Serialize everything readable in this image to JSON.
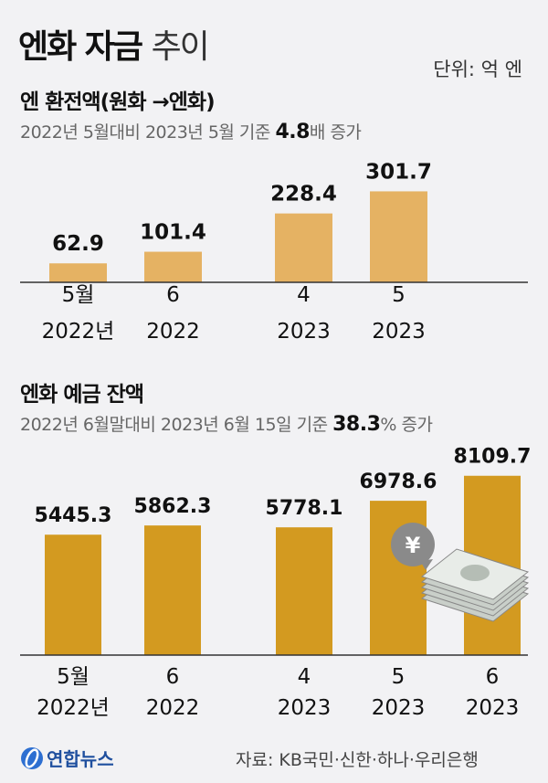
{
  "title": {
    "bold": "엔화 자금",
    "light": "추이"
  },
  "unit": "단위: 억 엔",
  "colors": {
    "bar1": "#e5b263",
    "bar2": "#d39a20",
    "background": "#f2f2f4"
  },
  "source": "자료: KB국민·신한·하나·우리은행",
  "logo": {
    "text": "연합뉴스",
    "icon": "yonhap-globe-logo"
  },
  "chart_data": [
    {
      "type": "bar",
      "title": "엔 환전액(원화 →엔화)",
      "note": {
        "pre": "2022년 5월대비 2023년 5월 기준 ",
        "highlight": "4.8",
        "post": "배 증가"
      },
      "categories": [
        [
          "5월",
          "2022년"
        ],
        [
          "6",
          "2022"
        ],
        [
          "4",
          "2023"
        ],
        [
          "5",
          "2023"
        ]
      ],
      "values": [
        62.9,
        101.4,
        228.4,
        301.7
      ],
      "value_labels": [
        "62.9",
        "101.4",
        "228.4",
        "301.7"
      ]
    },
    {
      "type": "bar",
      "title": "엔화 예금 잔액",
      "note": {
        "pre": "2022년 6월말대비 2023년 6월 15일 기준 ",
        "highlight": "38.3",
        "post": "% 증가"
      },
      "categories": [
        [
          "5월",
          "2022년"
        ],
        [
          "6",
          "2022"
        ],
        [
          "4",
          "2023"
        ],
        [
          "5",
          "2023"
        ],
        [
          "6",
          "2023"
        ]
      ],
      "values": [
        5445.3,
        5862.3,
        5778.1,
        6978.6,
        8109.7
      ],
      "value_labels": [
        "5445.3",
        "5862.3",
        "5778.1",
        "6978.6",
        "8109.7"
      ],
      "illustration": {
        "icon": "yen-cash-stack-icon",
        "badge": "¥"
      }
    }
  ]
}
